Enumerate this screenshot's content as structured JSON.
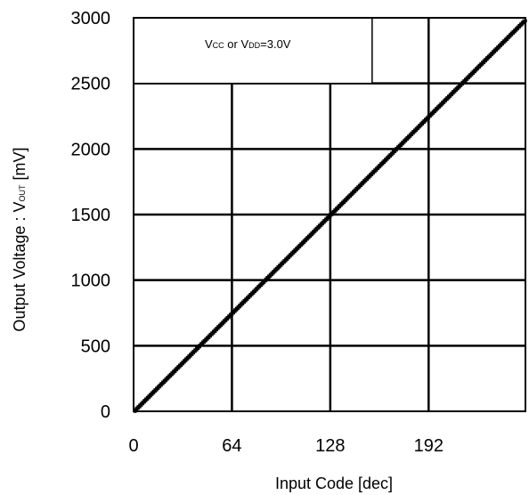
{
  "chart_data": {
    "type": "line",
    "title": "",
    "xlabel": "Input Code [dec]",
    "ylabel": {
      "main": "Output Voltage : V",
      "sub": "OUT",
      "unit": " [mV]"
    },
    "xlim": [
      0,
      255
    ],
    "ylim": [
      0,
      3000
    ],
    "x_ticks": [
      0,
      64,
      128,
      192
    ],
    "y_ticks": [
      0,
      500,
      1000,
      1500,
      2000,
      2500,
      3000
    ],
    "grid": true,
    "series": [
      {
        "color": "#000000",
        "step": true,
        "x": [
          0,
          255
        ],
        "y": [
          0,
          2988
        ]
      }
    ],
    "annotation": {
      "parts": [
        {
          "text": "V",
          "sub": false
        },
        {
          "text": "CC",
          "sub": true
        },
        {
          "text": " or V",
          "sub": false
        },
        {
          "text": "DD",
          "sub": true
        },
        {
          "text": "=3.0V",
          "sub": false
        }
      ]
    }
  }
}
